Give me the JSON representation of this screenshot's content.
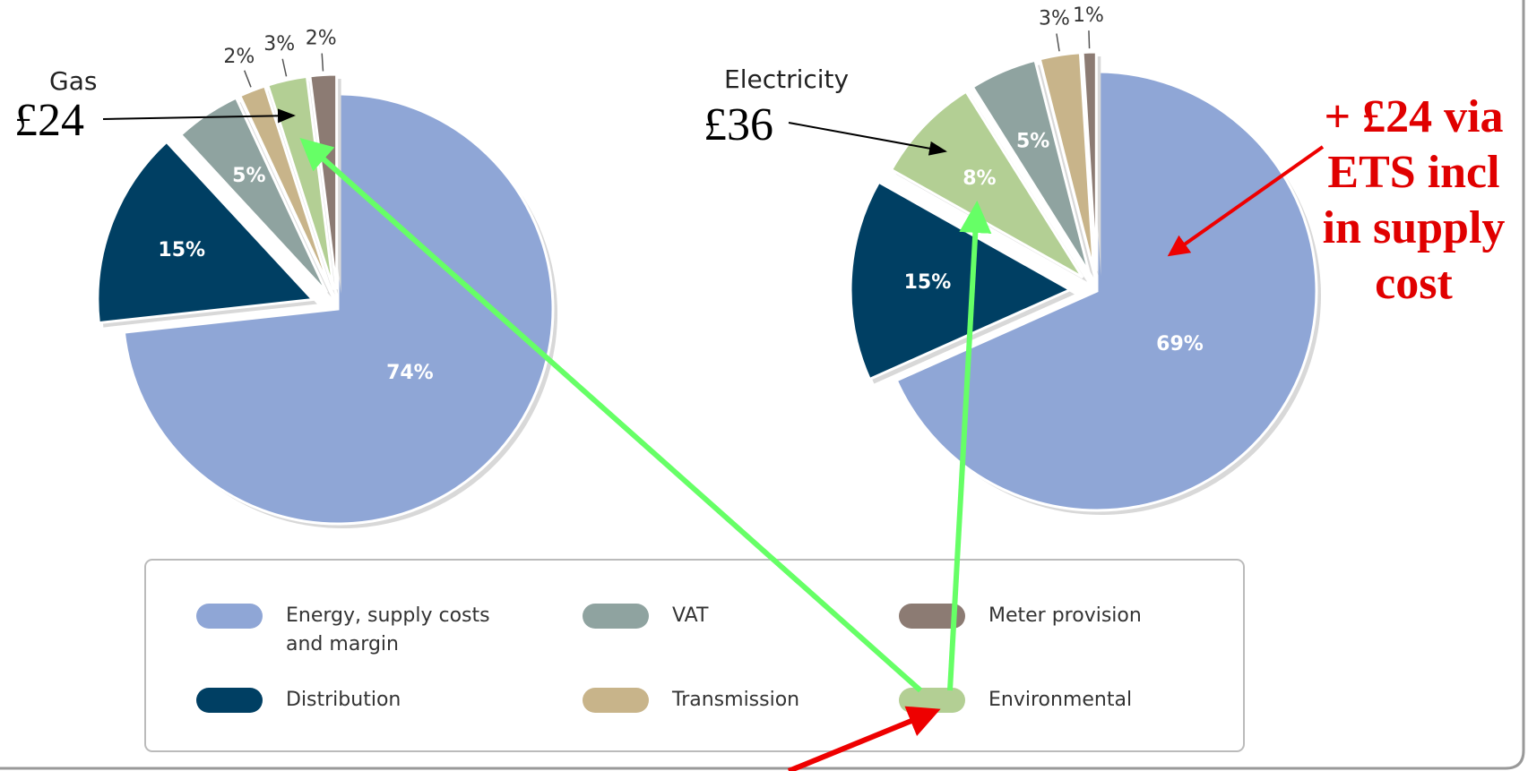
{
  "chart_data": [
    {
      "type": "pie",
      "title": "Gas",
      "annotation": "£24",
      "categories": [
        "Energy, supply costs and margin",
        "Distribution",
        "VAT",
        "Transmission",
        "Environmental",
        "Meter provision"
      ],
      "values": [
        74,
        15,
        5,
        2,
        3,
        2
      ],
      "value_labels": [
        "74%",
        "15%",
        "5%",
        "2%",
        "3%",
        "2%"
      ],
      "colors": [
        "#8fa6d6",
        "#003f63",
        "#8fa3a0",
        "#c8b48a",
        "#b3cf94",
        "#8c7b73"
      ]
    },
    {
      "type": "pie",
      "title": "Electricity",
      "annotation": "£36",
      "categories": [
        "Energy, supply costs and margin",
        "Distribution",
        "Environmental",
        "VAT",
        "Transmission",
        "Meter provision"
      ],
      "values": [
        69,
        15,
        8,
        5,
        3,
        1
      ],
      "value_labels": [
        "69%",
        "15%",
        "8%",
        "5%",
        "3%",
        "1%"
      ],
      "colors": [
        "#8fa6d6",
        "#003f63",
        "#b3cf94",
        "#8fa3a0",
        "#c8b48a",
        "#8c7b73"
      ]
    }
  ],
  "note": "+ £24 via ETS incl in supply cost"
}
